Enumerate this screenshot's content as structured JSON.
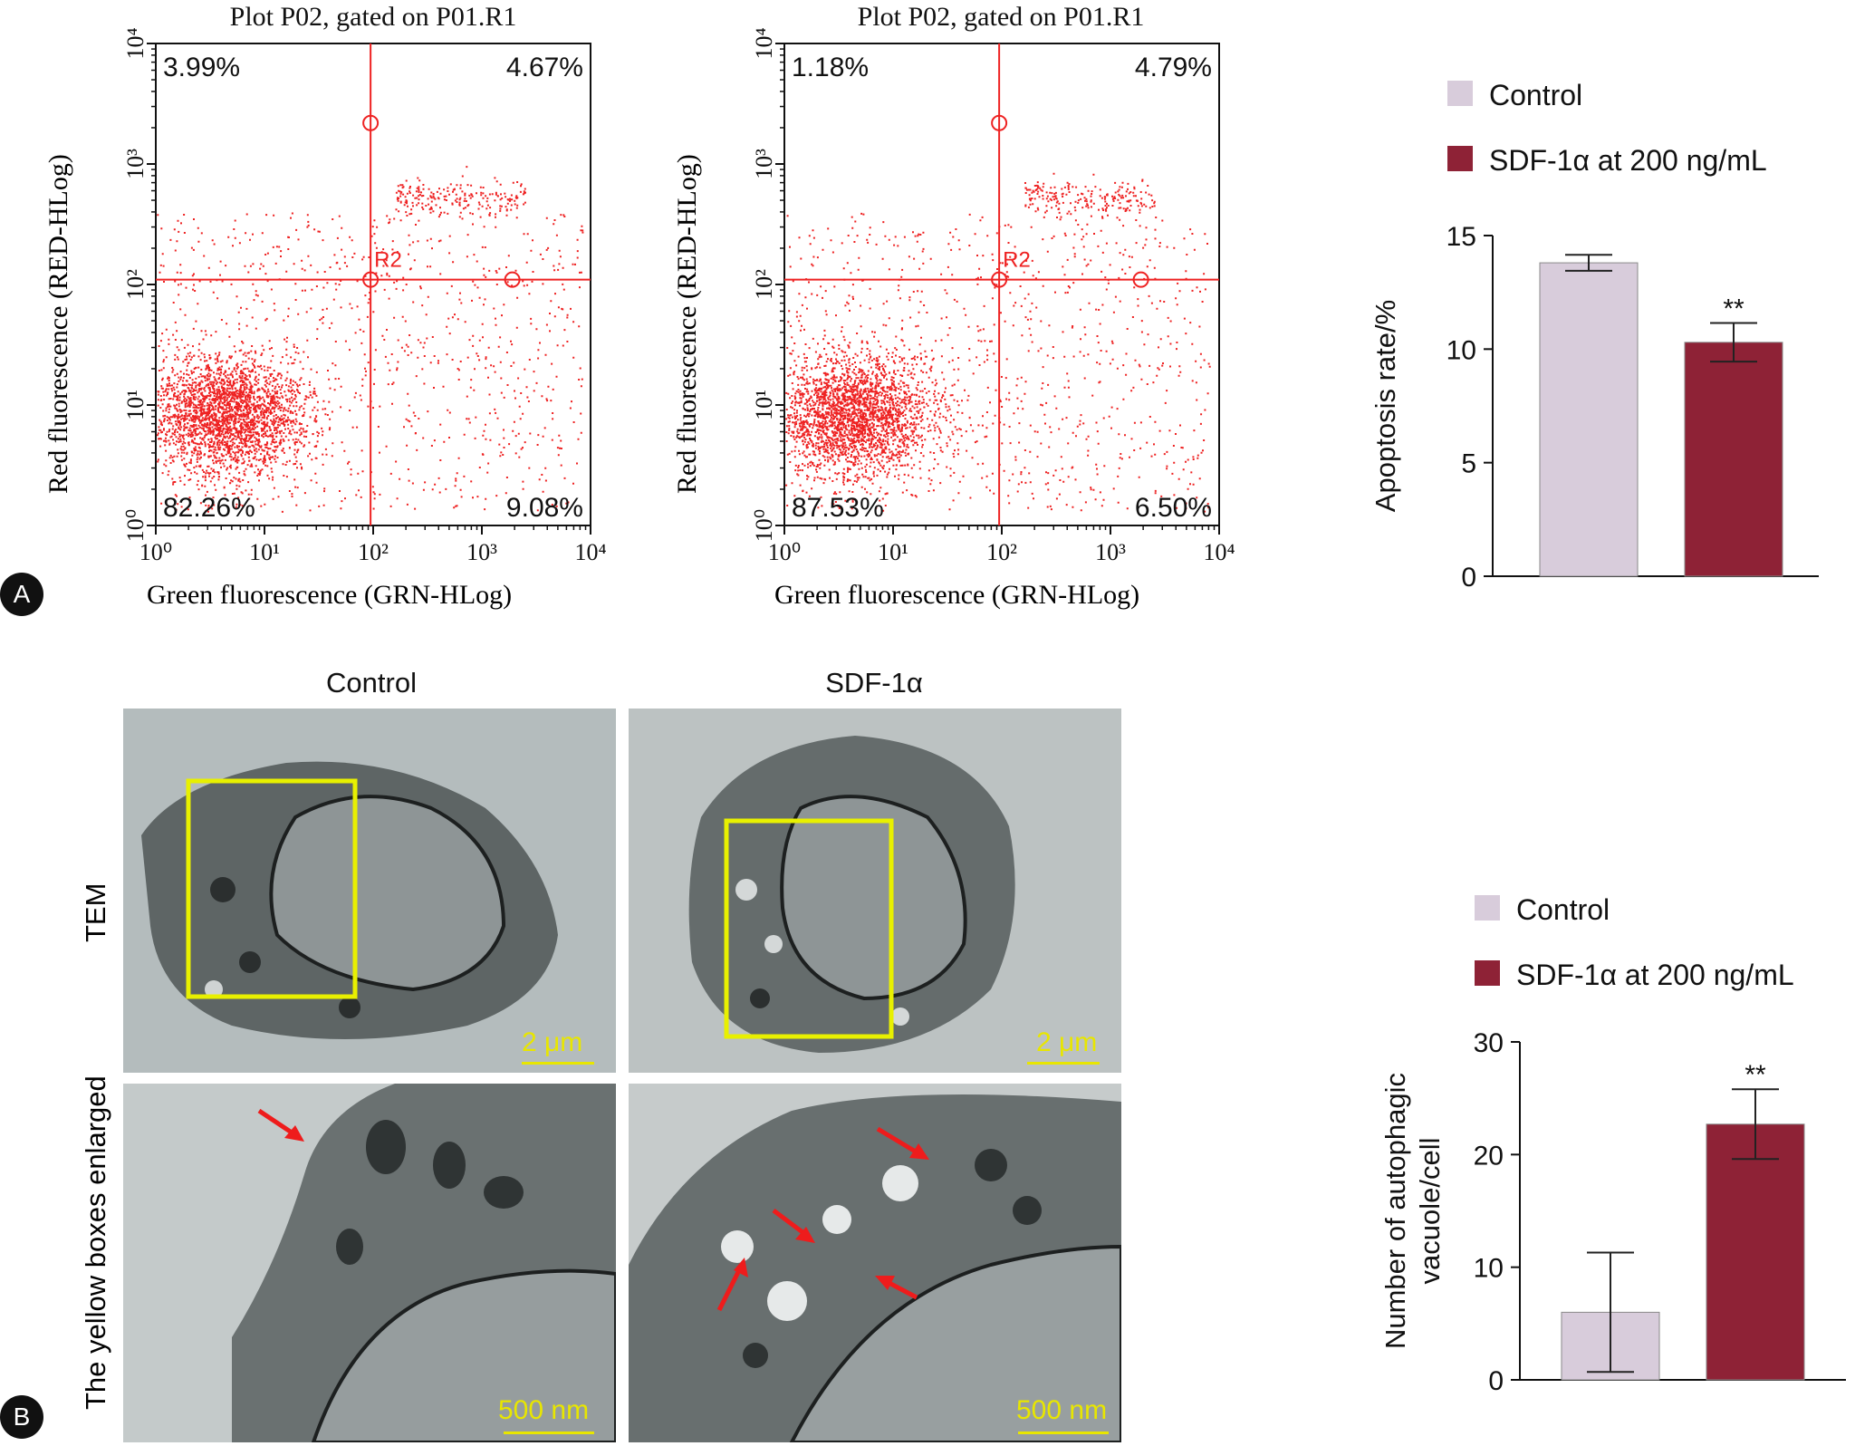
{
  "panel_labels": {
    "a": "A",
    "b": "B"
  },
  "flow": [
    {
      "title": "Plot P02, gated on P01.R1",
      "ylabel": "Red fluorescence (RED-HLog)",
      "xlabel": "Green fluorescence (GRN-HLog)",
      "gate_label": "R2",
      "quadrants": {
        "ul": "3.99%",
        "ur": "4.67%",
        "ll": "82.26%",
        "lr": "9.08%"
      }
    },
    {
      "title": "Plot P02, gated on P01.R1",
      "ylabel": "Red fluorescence (RED-HLog)",
      "xlabel": "Green fluorescence (GRN-HLog)",
      "gate_label": "R2",
      "quadrants": {
        "ul": "1.18%",
        "ur": "4.79%",
        "ll": "87.53%",
        "lr": "6.50%"
      }
    }
  ],
  "log_ticks": [
    "10⁰",
    "10¹",
    "10²",
    "10³",
    "10⁴"
  ],
  "tem": {
    "col_headers": [
      "Control",
      "SDF-1α"
    ],
    "row_labels": [
      "TEM",
      "The yellow boxes enlarged"
    ],
    "scale_top": "2 μm",
    "scale_bottom": "500 nm"
  },
  "colors": {
    "control": "#d8ccdb",
    "sdf": "#8e2236",
    "flow_dot": "#ee2222",
    "yellow": "#e8f000"
  },
  "chart_data": [
    {
      "type": "bar",
      "title": "",
      "categories": [
        "Control",
        "SDF-1α at 200 ng/mL"
      ],
      "legend": [
        "Control",
        "SDF-1α at 200 ng/mL"
      ],
      "values": [
        13.8,
        10.3
      ],
      "errors": [
        0.35,
        0.85
      ],
      "significance": [
        "",
        "**"
      ],
      "xlabel": "",
      "ylabel": "Apoptosis rate/%",
      "ylim": [
        0,
        15
      ],
      "yticks": [
        0,
        5,
        10,
        15
      ]
    },
    {
      "type": "bar",
      "title": "",
      "categories": [
        "Control",
        "SDF-1α at 200 ng/mL"
      ],
      "legend": [
        "Control",
        "SDF-1α at 200 ng/mL"
      ],
      "values": [
        6.0,
        22.7
      ],
      "errors": [
        5.3,
        3.1
      ],
      "significance": [
        "",
        "**"
      ],
      "xlabel": "",
      "ylabel": "Number of autophagic vacuole/cell",
      "ylabel_lines": [
        "Number of autophagic",
        "vacuole/cell"
      ],
      "ylim": [
        0,
        30
      ],
      "yticks": [
        0,
        10,
        20,
        30
      ]
    }
  ]
}
